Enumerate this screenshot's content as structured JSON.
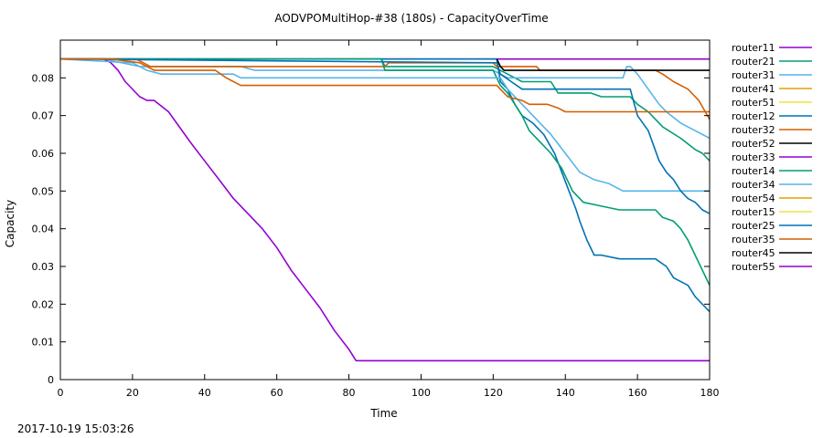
{
  "title": "AODVPOMultiHop-#38 (180s) - CapacityOverTime",
  "timestamp": "2017-10-19 15:03:26",
  "chart_data": {
    "type": "line",
    "title": "AODVPOMultiHop-#38 (180s) - CapacityOverTime",
    "xlabel": "Time",
    "ylabel": "Capacity",
    "xlim": [
      0,
      180
    ],
    "ylim": [
      0,
      0.09
    ],
    "xticks": [
      0,
      20,
      40,
      60,
      80,
      100,
      120,
      140,
      160,
      180
    ],
    "yticks": [
      0,
      0.01,
      0.02,
      0.03,
      0.04,
      0.05,
      0.06,
      0.07,
      0.08
    ],
    "grid": false,
    "legend_position": "right",
    "series": [
      {
        "name": "router11",
        "color": "#9400d3",
        "points": [
          [
            0,
            0.085
          ],
          [
            180,
            0.085
          ]
        ]
      },
      {
        "name": "router21",
        "color": "#009e73",
        "points": [
          [
            0,
            0.085
          ],
          [
            89,
            0.085
          ],
          [
            90,
            0.083
          ],
          [
            120,
            0.083
          ],
          [
            122,
            0.082
          ],
          [
            124,
            0.081
          ],
          [
            126,
            0.08
          ],
          [
            128,
            0.079
          ],
          [
            136,
            0.079
          ],
          [
            138,
            0.076
          ],
          [
            147,
            0.076
          ],
          [
            150,
            0.075
          ],
          [
            158,
            0.075
          ],
          [
            160,
            0.073
          ],
          [
            163,
            0.071
          ],
          [
            167,
            0.067
          ],
          [
            172,
            0.064
          ],
          [
            176,
            0.061
          ],
          [
            178,
            0.06
          ],
          [
            180,
            0.058
          ]
        ]
      },
      {
        "name": "router31",
        "color": "#56b4e9",
        "points": [
          [
            0,
            0.085
          ],
          [
            12,
            0.085
          ],
          [
            22,
            0.083
          ],
          [
            50,
            0.083
          ],
          [
            54,
            0.082
          ],
          [
            120,
            0.082
          ],
          [
            124,
            0.08
          ],
          [
            140,
            0.08
          ],
          [
            156,
            0.08
          ],
          [
            157,
            0.083
          ],
          [
            158,
            0.083
          ],
          [
            160,
            0.081
          ],
          [
            163,
            0.077
          ],
          [
            166,
            0.073
          ],
          [
            168,
            0.071
          ],
          [
            172,
            0.068
          ],
          [
            176,
            0.066
          ],
          [
            180,
            0.064
          ]
        ]
      },
      {
        "name": "router41",
        "color": "#e69f00",
        "points": []
      },
      {
        "name": "router51",
        "color": "#f0e442",
        "points": []
      },
      {
        "name": "router12",
        "color": "#0072b2",
        "points": [
          [
            0,
            0.085
          ],
          [
            121,
            0.085
          ],
          [
            122,
            0.079
          ],
          [
            124,
            0.077
          ],
          [
            126,
            0.073
          ],
          [
            128,
            0.07
          ],
          [
            131,
            0.068
          ],
          [
            134,
            0.065
          ],
          [
            137,
            0.06
          ],
          [
            139,
            0.055
          ],
          [
            141,
            0.05
          ],
          [
            143,
            0.045
          ],
          [
            144,
            0.042
          ],
          [
            146,
            0.037
          ],
          [
            148,
            0.033
          ],
          [
            150,
            0.033
          ],
          [
            155,
            0.032
          ],
          [
            165,
            0.032
          ],
          [
            168,
            0.03
          ],
          [
            170,
            0.027
          ],
          [
            174,
            0.025
          ],
          [
            176,
            0.022
          ],
          [
            180,
            0.018
          ]
        ]
      },
      {
        "name": "router32",
        "color": "#d55e00",
        "points": [
          [
            0,
            0.085
          ],
          [
            21,
            0.085
          ],
          [
            25,
            0.083
          ],
          [
            90,
            0.083
          ],
          [
            91,
            0.084
          ],
          [
            110,
            0.084
          ],
          [
            120,
            0.084
          ],
          [
            121,
            0.083
          ],
          [
            132,
            0.083
          ],
          [
            133,
            0.082
          ],
          [
            165,
            0.082
          ],
          [
            167,
            0.081
          ],
          [
            170,
            0.079
          ],
          [
            174,
            0.077
          ],
          [
            177,
            0.074
          ],
          [
            180,
            0.069
          ]
        ]
      },
      {
        "name": "router52",
        "color": "#000000",
        "points": [
          [
            121,
            0.085
          ],
          [
            122,
            0.083
          ],
          [
            123,
            0.082
          ],
          [
            180,
            0.082
          ]
        ]
      },
      {
        "name": "router33",
        "color": "#9400d3",
        "points": [
          [
            0,
            0.085
          ],
          [
            12,
            0.085
          ],
          [
            14,
            0.084
          ],
          [
            16,
            0.082
          ],
          [
            18,
            0.079
          ],
          [
            22,
            0.075
          ],
          [
            24,
            0.074
          ],
          [
            26,
            0.074
          ],
          [
            30,
            0.071
          ],
          [
            33,
            0.067
          ],
          [
            36,
            0.063
          ],
          [
            40,
            0.058
          ],
          [
            44,
            0.053
          ],
          [
            48,
            0.048
          ],
          [
            52,
            0.044
          ],
          [
            56,
            0.04
          ],
          [
            60,
            0.035
          ],
          [
            64,
            0.029
          ],
          [
            68,
            0.024
          ],
          [
            72,
            0.019
          ],
          [
            76,
            0.013
          ],
          [
            80,
            0.008
          ],
          [
            82,
            0.005
          ],
          [
            180,
            0.005
          ]
        ]
      },
      {
        "name": "router14",
        "color": "#009e73",
        "points": [
          [
            0,
            0.085
          ],
          [
            89,
            0.085
          ],
          [
            90,
            0.082
          ],
          [
            120,
            0.082
          ],
          [
            122,
            0.078
          ],
          [
            124,
            0.076
          ],
          [
            126,
            0.073
          ],
          [
            128,
            0.07
          ],
          [
            130,
            0.066
          ],
          [
            133,
            0.063
          ],
          [
            136,
            0.06
          ],
          [
            139,
            0.056
          ],
          [
            142,
            0.05
          ],
          [
            145,
            0.047
          ],
          [
            150,
            0.046
          ],
          [
            155,
            0.045
          ],
          [
            165,
            0.045
          ],
          [
            167,
            0.043
          ],
          [
            170,
            0.042
          ],
          [
            172,
            0.04
          ],
          [
            174,
            0.037
          ],
          [
            176,
            0.033
          ],
          [
            178,
            0.029
          ],
          [
            180,
            0.025
          ]
        ]
      },
      {
        "name": "router34",
        "color": "#56b4e9",
        "points": [
          [
            0,
            0.085
          ],
          [
            20,
            0.084
          ],
          [
            24,
            0.082
          ],
          [
            28,
            0.081
          ],
          [
            48,
            0.081
          ],
          [
            50,
            0.08
          ],
          [
            122,
            0.08
          ],
          [
            124,
            0.077
          ],
          [
            128,
            0.073
          ],
          [
            132,
            0.069
          ],
          [
            136,
            0.065
          ],
          [
            140,
            0.06
          ],
          [
            144,
            0.055
          ],
          [
            148,
            0.053
          ],
          [
            152,
            0.052
          ],
          [
            156,
            0.05
          ],
          [
            180,
            0.05
          ]
        ]
      },
      {
        "name": "router54",
        "color": "#e69f00",
        "points": []
      },
      {
        "name": "router15",
        "color": "#f0e442",
        "points": []
      },
      {
        "name": "router25",
        "color": "#0072b2",
        "points": [
          [
            0,
            0.085
          ],
          [
            121,
            0.084
          ],
          [
            122,
            0.081
          ],
          [
            125,
            0.079
          ],
          [
            128,
            0.077
          ],
          [
            158,
            0.077
          ],
          [
            160,
            0.07
          ],
          [
            163,
            0.066
          ],
          [
            166,
            0.058
          ],
          [
            168,
            0.055
          ],
          [
            170,
            0.053
          ],
          [
            172,
            0.05
          ],
          [
            174,
            0.048
          ],
          [
            176,
            0.047
          ],
          [
            178,
            0.045
          ],
          [
            180,
            0.044
          ]
        ]
      },
      {
        "name": "router35",
        "color": "#d55e00",
        "points": [
          [
            0,
            0.085
          ],
          [
            14,
            0.085
          ],
          [
            22,
            0.084
          ],
          [
            26,
            0.082
          ],
          [
            43,
            0.082
          ],
          [
            46,
            0.08
          ],
          [
            50,
            0.078
          ],
          [
            121,
            0.078
          ],
          [
            124,
            0.075
          ],
          [
            128,
            0.074
          ],
          [
            130,
            0.073
          ],
          [
            135,
            0.073
          ],
          [
            138,
            0.072
          ],
          [
            140,
            0.071
          ],
          [
            180,
            0.071
          ]
        ]
      },
      {
        "name": "router45",
        "color": "#000000",
        "points": []
      },
      {
        "name": "router55",
        "color": "#9400d3",
        "points": []
      }
    ]
  }
}
